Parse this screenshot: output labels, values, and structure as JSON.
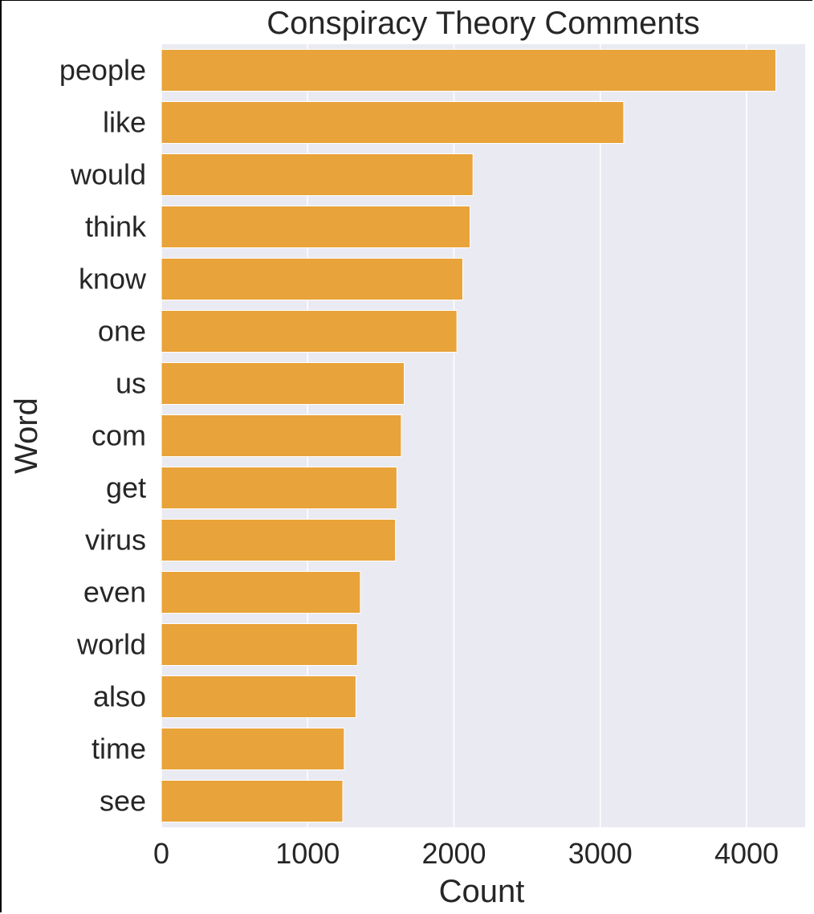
{
  "chart_data": {
    "type": "bar",
    "orientation": "horizontal",
    "title": "Conspiracy Theory Comments",
    "xlabel": "Count",
    "ylabel": "Word",
    "categories": [
      "people",
      "like",
      "would",
      "think",
      "know",
      "one",
      "us",
      "com",
      "get",
      "virus",
      "even",
      "world",
      "also",
      "time",
      "see"
    ],
    "values": [
      4200,
      3160,
      2130,
      2110,
      2060,
      2020,
      1660,
      1640,
      1610,
      1600,
      1360,
      1340,
      1330,
      1250,
      1240
    ],
    "xlim": [
      0,
      4400
    ],
    "xticks": [
      0,
      1000,
      2000,
      3000,
      4000
    ],
    "xtick_labels": [
      "0",
      "1000",
      "2000",
      "3000",
      "4000"
    ],
    "grid": true,
    "bar_color": "#e8a33a",
    "background_color": "#eaeaf2",
    "grid_color": "#ffffff"
  }
}
